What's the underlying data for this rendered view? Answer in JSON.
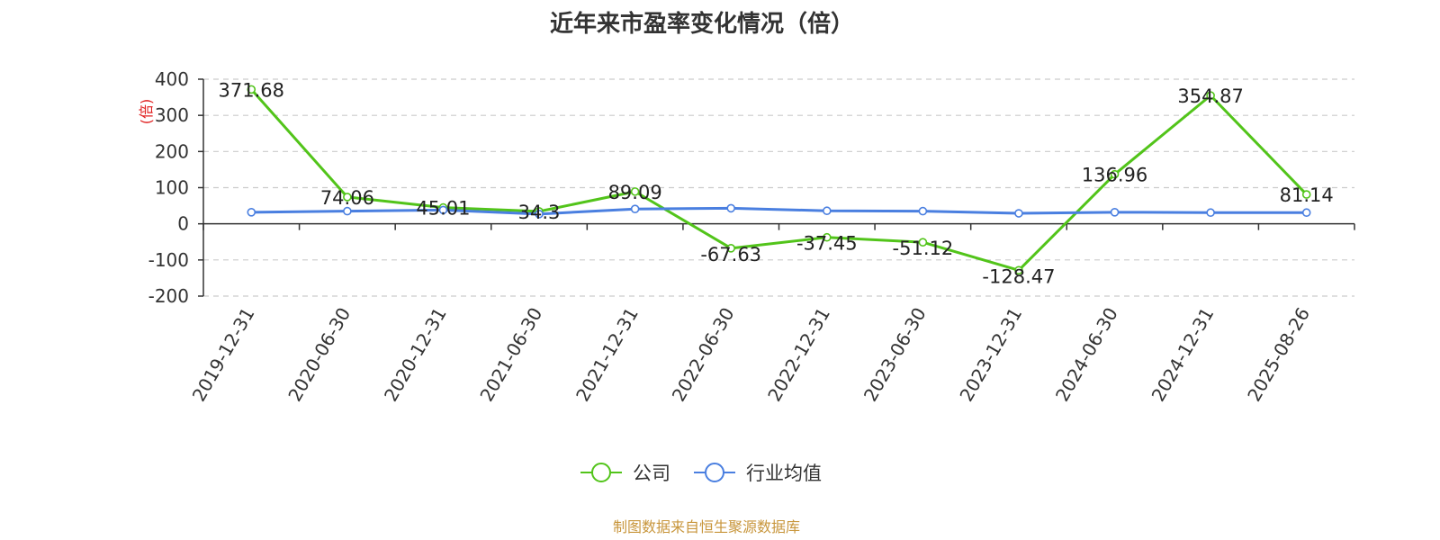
{
  "chart_data": {
    "type": "line",
    "title": "近年来市盈率变化情况（倍）",
    "ylabel": "(倍)",
    "xlabel": "",
    "categories": [
      "2019-12-31",
      "2020-06-30",
      "2020-12-31",
      "2021-06-30",
      "2021-12-31",
      "2022-06-30",
      "2022-12-31",
      "2023-06-30",
      "2023-12-31",
      "2024-06-30",
      "2024-12-31",
      "2025-08-26"
    ],
    "ylim": [
      -200,
      400
    ],
    "yticks": [
      400,
      300,
      200,
      100,
      0,
      -100,
      -200
    ],
    "ytick_labels": [
      "400",
      "300",
      "200",
      "100",
      "0",
      "-100",
      "-200"
    ],
    "grid": true,
    "legend_position": "bottom-center",
    "series": [
      {
        "name": "公司",
        "color": "#52c41a",
        "values": [
          371.68,
          74.06,
          45.01,
          34.3,
          89.09,
          -67.63,
          -37.45,
          -51.12,
          -128.47,
          136.96,
          354.87,
          81.14
        ],
        "labels": [
          "371.68",
          "74.06",
          "45.01",
          "34.3",
          "89.09",
          "-67.63",
          "-37.45",
          "-51.12",
          "-128.47",
          "136.96",
          "354.87",
          "81.14"
        ]
      },
      {
        "name": "行业均值",
        "color": "#4a7fe0",
        "values": [
          32,
          35,
          38,
          27,
          41,
          43,
          36,
          35,
          29,
          32,
          31,
          31
        ]
      }
    ],
    "source": "制图数据来自恒生聚源数据库"
  }
}
